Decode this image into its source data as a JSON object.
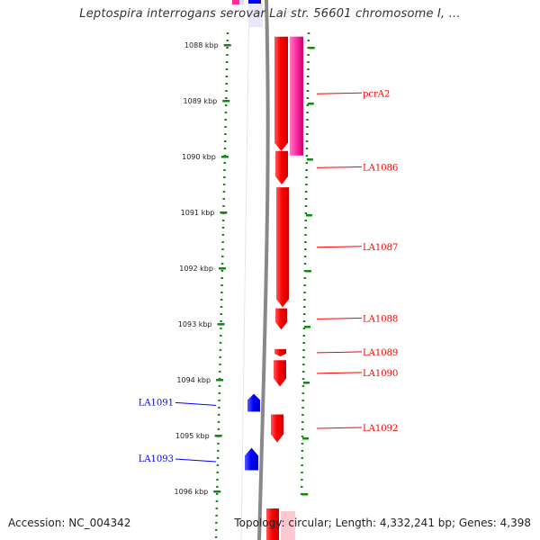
{
  "header": {
    "title": "Leptospira interrogans serovar Lai str. 56601 chromosome I, ..."
  },
  "ruler": {
    "ticks": [
      {
        "label": "1088 kbp",
        "kbp": 1088
      },
      {
        "label": "1089 kbp",
        "kbp": 1089
      },
      {
        "label": "1090 kbp",
        "kbp": 1090
      },
      {
        "label": "1091 kbp",
        "kbp": 1091
      },
      {
        "label": "1092 kbp",
        "kbp": 1092
      },
      {
        "label": "1093 kbp",
        "kbp": 1093
      },
      {
        "label": "1094 kbp",
        "kbp": 1094
      },
      {
        "label": "1095 kbp",
        "kbp": 1095
      },
      {
        "label": "1096 kbp",
        "kbp": 1096
      }
    ]
  },
  "genes": [
    {
      "label": "pcrA2",
      "strand": "forward",
      "start_kbp": 1087.85,
      "end_kbp": 1089.9,
      "color": "#ff0000"
    },
    {
      "label": "LA1086",
      "strand": "forward",
      "start_kbp": 1089.9,
      "end_kbp": 1090.5,
      "color": "#ff0000"
    },
    {
      "label": "LA1087",
      "strand": "forward",
      "start_kbp": 1090.55,
      "end_kbp": 1092.7,
      "color": "#ff0000"
    },
    {
      "label": "LA1088",
      "strand": "forward",
      "start_kbp": 1092.72,
      "end_kbp": 1093.1,
      "color": "#ff0000"
    },
    {
      "label": "LA1089",
      "strand": "forward",
      "start_kbp": 1093.45,
      "end_kbp": 1093.58,
      "color": "#ff0000"
    },
    {
      "label": "LA1090",
      "strand": "forward",
      "start_kbp": 1093.65,
      "end_kbp": 1094.12,
      "color": "#ff0000"
    },
    {
      "label": "LA1092",
      "strand": "forward",
      "start_kbp": 1094.62,
      "end_kbp": 1095.12,
      "color": "#ff0000"
    },
    {
      "label": "LA1091",
      "strand": "reverse",
      "start_kbp": 1094.57,
      "end_kbp": 1094.25,
      "color": "#0000ff"
    },
    {
      "label": "LA1093",
      "strand": "reverse",
      "start_kbp": 1095.62,
      "end_kbp": 1095.22,
      "color": "#0000ff"
    }
  ],
  "footer": {
    "accession": "Accession: NC_004342",
    "summary": "Topology: circular; Length: 4,332,241 bp; Genes: 4,398"
  }
}
